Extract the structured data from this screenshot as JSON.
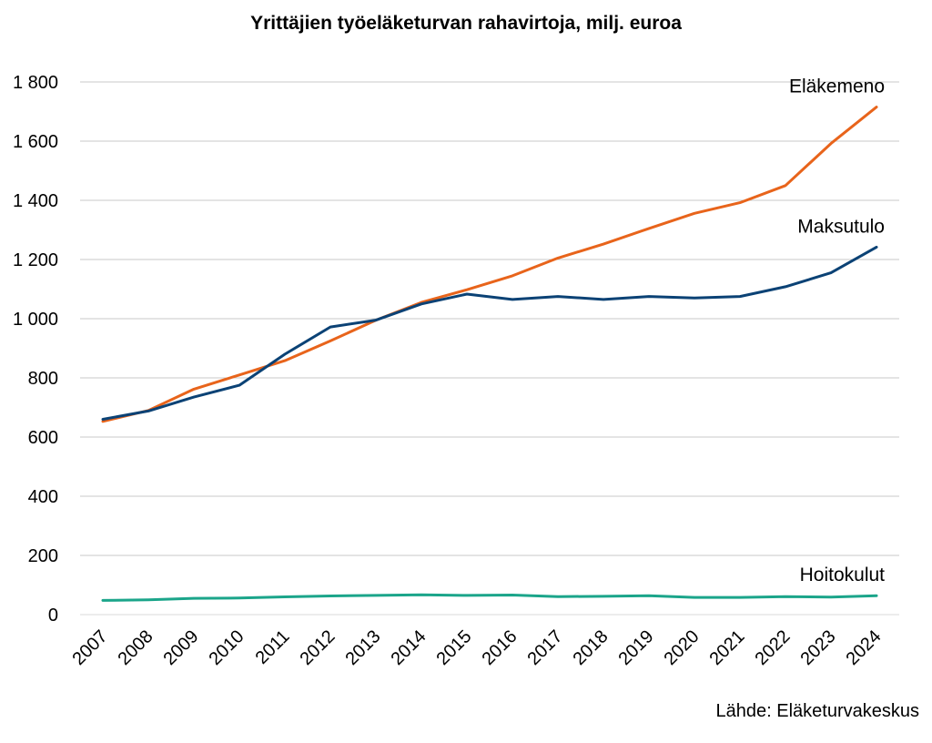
{
  "chart_data": {
    "type": "line",
    "title": "Yrittäjien työeläketurvan rahavirtoja, milj. euroa",
    "source": "Lähde: Eläketurvakeskus",
    "x": [
      "2007",
      "2008",
      "2009",
      "2010",
      "2011",
      "2012",
      "2013",
      "2014",
      "2015",
      "2016",
      "2017",
      "2018",
      "2019",
      "2020",
      "2021",
      "2022",
      "2023",
      "2024"
    ],
    "ylim": [
      0,
      1800
    ],
    "yticks": [
      0,
      200,
      400,
      600,
      800,
      1000,
      1200,
      1400,
      1600,
      1800
    ],
    "ytick_labels": [
      "0",
      "200",
      "400",
      "600",
      "800",
      "1 000",
      "1 200",
      "1 400",
      "1 600",
      "1 800"
    ],
    "grid": true,
    "legend": "none (series labelled directly at line ends)",
    "series": [
      {
        "name": "Eläkemeno",
        "color": "#E8641B",
        "values": [
          653,
          690,
          762,
          810,
          858,
          925,
          995,
          1055,
          1098,
          1145,
          1205,
          1252,
          1305,
          1356,
          1392,
          1450,
          1592,
          1715
        ]
      },
      {
        "name": "Maksutulo",
        "color": "#0B4275",
        "values": [
          660,
          688,
          735,
          775,
          880,
          972,
          995,
          1050,
          1083,
          1065,
          1075,
          1065,
          1075,
          1070,
          1075,
          1108,
          1155,
          1242
        ]
      },
      {
        "name": "Hoitokulut",
        "color": "#1BA58A",
        "values": [
          48,
          50,
          55,
          56,
          60,
          63,
          65,
          67,
          65,
          66,
          61,
          62,
          64,
          58,
          58,
          61,
          59,
          64
        ]
      }
    ]
  }
}
